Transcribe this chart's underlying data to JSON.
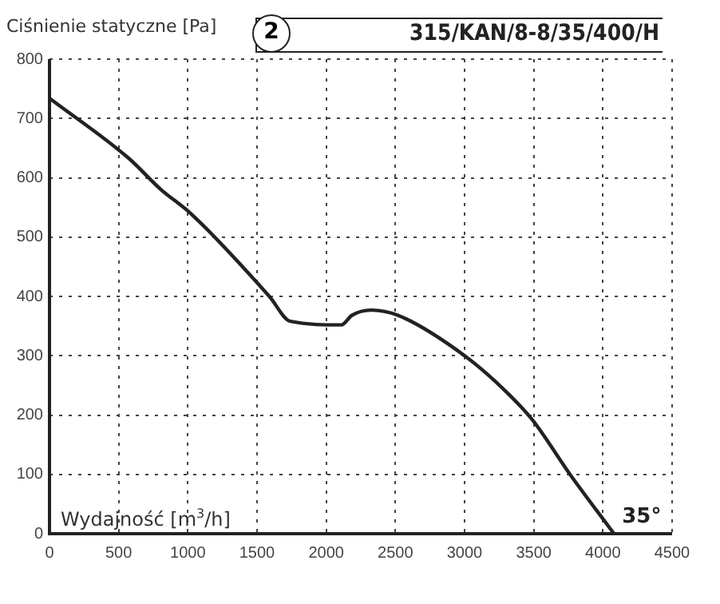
{
  "chart_data": {
    "type": "line",
    "title": "315/KAN/8-8/35/400/H",
    "xlabel": "Wydajność [m$^{3}$/h]",
    "ylabel": "Ciśnienie statyczne [Pa]",
    "annotations": [
      "2",
      {
        "text": "35°",
        "x": 4080,
        "y": 0
      }
    ],
    "series": [
      {
        "color": "#222222",
        "x": [
          0,
          572,
          806,
          1020,
          1589,
          1741,
          2110,
          2185,
          2325,
          2520,
          3006,
          3298,
          3493,
          3765,
          4080
        ],
        "values": [
          734,
          633,
          580,
          540,
          400,
          358,
          352,
          368,
          377,
          368,
          299,
          240,
          191,
          99,
          0
        ]
      }
    ],
    "xlim": [
      0,
      4500
    ],
    "xticks": [
      0,
      500,
      1000,
      1500,
      2000,
      2500,
      3000,
      3500,
      4000,
      4500
    ],
    "ylim": [
      0,
      800
    ],
    "yticks": [
      0,
      100,
      200,
      300,
      400,
      500,
      600,
      700,
      800
    ],
    "grid": true,
    "legend": false,
    "marker": "none",
    "line_style": "solid"
  }
}
